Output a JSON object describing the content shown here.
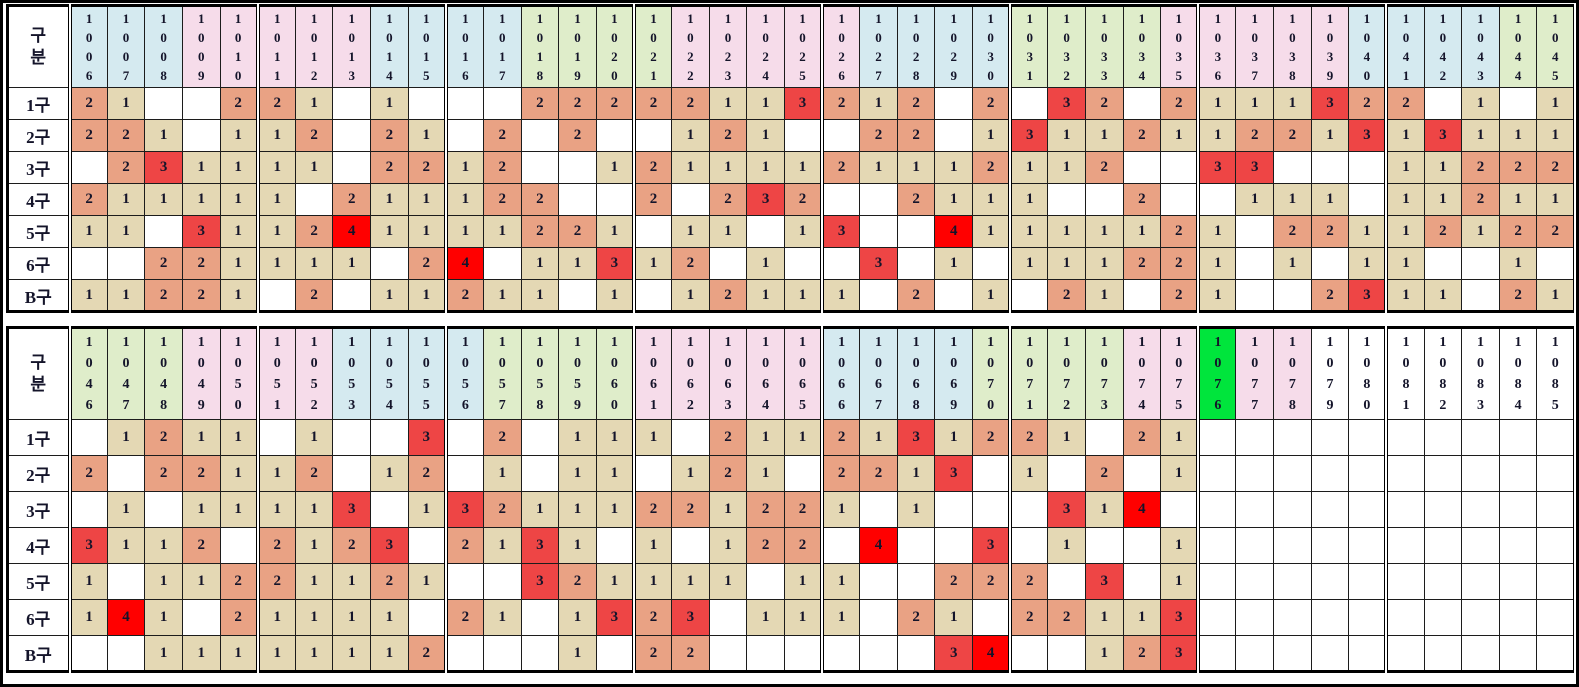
{
  "corner": {
    "label": "구분",
    "lines": [
      "구",
      "분"
    ]
  },
  "row_labels": [
    "1구",
    "2구",
    "3구",
    "4구",
    "5구",
    "6구",
    "B구"
  ],
  "colors": {
    "value_1_bg": "#e4d8b4",
    "value_2_bg": "#e9a284",
    "value_3_bg": "#ee4545",
    "value_4_bg": "#ff0000",
    "header_blue": "#d5eaf0",
    "header_pink": "#f6dcea",
    "header_green": "#dfedca",
    "header_highlight_green": "#00e53c",
    "header_white": "#ffffff",
    "grid_line": "#1c1c1c"
  },
  "tables": [
    {
      "name": "draw-grid-1006-1045",
      "columns": [
        "1006",
        "1007",
        "1008",
        "1009",
        "1010",
        "1011",
        "1012",
        "1013",
        "1014",
        "1015",
        "1016",
        "1017",
        "1018",
        "1019",
        "1020",
        "1021",
        "1022",
        "1023",
        "1024",
        "1025",
        "1026",
        "1027",
        "1028",
        "1029",
        "1030",
        "1031",
        "1032",
        "1033",
        "1034",
        "1035",
        "1036",
        "1037",
        "1038",
        "1039",
        "1040",
        "1041",
        "1042",
        "1043",
        "1044",
        "1045"
      ],
      "col_colors": "BBBPPPPPBBBBGGGGPPPPPBBBBGGGGPPPPPBBBBGG",
      "rows": [
        {
          "key": "1gu",
          "label": "1구",
          "cells": "2100221010002222211321202032021113220101"
        },
        {
          "key": "2gu",
          "label": "2구",
          "cells": "2210112021020200121002201311211221313111"
        },
        {
          "key": "3gu",
          "label": "3구",
          "cells": "0231111022120012111121112112003300011222"
        },
        {
          "key": "4gu",
          "label": "4구",
          "cells": "2111110211122002023200211100200111011211"
        },
        {
          "key": "5gu",
          "label": "5구",
          "cells": "1103112411112210110130041111121022112122"
        },
        {
          "key": "6gu",
          "label": "6구",
          "cells": "0022111102401131201003010111221010110010"
        },
        {
          "key": "Bgu",
          "label": "B구",
          "cells": "1122102011211010121110201021021002311021"
        }
      ]
    },
    {
      "name": "draw-grid-1046-1085",
      "columns": [
        "1046",
        "1047",
        "1048",
        "1049",
        "1050",
        "1051",
        "1052",
        "1053",
        "1054",
        "1055",
        "1056",
        "1057",
        "1058",
        "1059",
        "1060",
        "1061",
        "1062",
        "1063",
        "1064",
        "1065",
        "1066",
        "1067",
        "1068",
        "1069",
        "1070",
        "1071",
        "1072",
        "1073",
        "1074",
        "1075",
        "1076",
        "1077",
        "1078",
        "1079",
        "1080",
        "1081",
        "1082",
        "1083",
        "1084",
        "1085"
      ],
      "col_colors": "GGGPPPPBBBBGGGGPPPPPBBBBGGGGPPHPPWWWWWWW",
      "highlighted_column": "1076",
      "rows": [
        {
          "key": "1gu",
          "label": "1구",
          "cells": "0121101003020111021121312210210000000000"
        },
        {
          "key": "2gu",
          "label": "2구",
          "cells": "2022112012010110121022130102010000000000"
        },
        {
          "key": "3gu",
          "label": "3구",
          "cells": "0101111301321112212210100031400000000000"
        },
        {
          "key": "4gu",
          "label": "4구",
          "cells": "3112021230213101012204003010010000000000"
        },
        {
          "key": "5gu",
          "label": "5구",
          "cells": "1011221121003211110110022203010000000000"
        },
        {
          "key": "6gu",
          "label": "6구",
          "cells": "1410211110210132301110210221130000000000"
        },
        {
          "key": "Bgu",
          "label": "B구",
          "cells": "0011111112000102200000034001230000000000"
        }
      ]
    }
  ]
}
